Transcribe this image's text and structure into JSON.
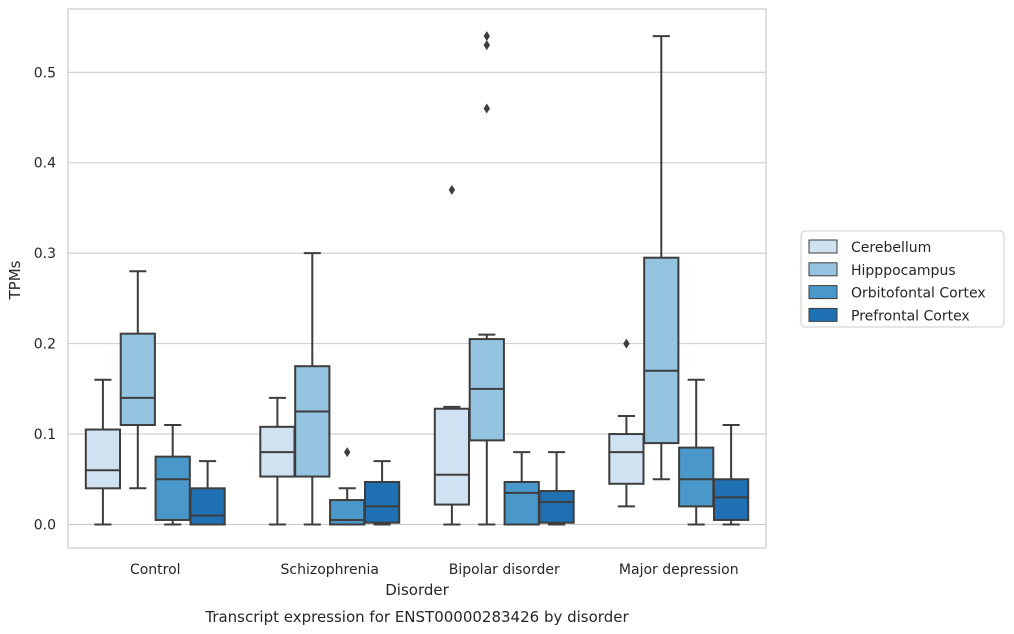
{
  "chart_data": {
    "type": "boxplot",
    "caption": "Transcript expression for ENST00000283426 by disorder",
    "xlabel": "Disorder",
    "ylabel": "TPMs",
    "ylim": [
      -0.026,
      0.57
    ],
    "yticks": [
      0.0,
      0.1,
      0.2,
      0.3,
      0.4,
      0.5
    ],
    "grid": "horizontal",
    "legend_position": "right",
    "categories": [
      "Control",
      "Schizophrenia",
      "Bipolar disorder",
      "Major depression"
    ],
    "series": [
      {
        "name": "Cerebellum",
        "color": "#d0e1f2",
        "boxes": [
          {
            "whislo": 0.0,
            "q1": 0.04,
            "med": 0.06,
            "q3": 0.105,
            "whishi": 0.16,
            "fliers": []
          },
          {
            "whislo": 0.0,
            "q1": 0.053,
            "med": 0.08,
            "q3": 0.108,
            "whishi": 0.14,
            "fliers": []
          },
          {
            "whislo": 0.0,
            "q1": 0.022,
            "med": 0.055,
            "q3": 0.128,
            "whishi": 0.13,
            "fliers": [
              0.37
            ]
          },
          {
            "whislo": 0.02,
            "q1": 0.045,
            "med": 0.08,
            "q3": 0.1,
            "whishi": 0.12,
            "fliers": [
              0.2
            ]
          }
        ]
      },
      {
        "name": "Hipppocampus",
        "color": "#94c4df",
        "boxes": [
          {
            "whislo": 0.04,
            "q1": 0.11,
            "med": 0.14,
            "q3": 0.211,
            "whishi": 0.28,
            "fliers": []
          },
          {
            "whislo": 0.0,
            "q1": 0.053,
            "med": 0.125,
            "q3": 0.175,
            "whishi": 0.3,
            "fliers": []
          },
          {
            "whislo": 0.0,
            "q1": 0.093,
            "med": 0.15,
            "q3": 0.205,
            "whishi": 0.21,
            "fliers": [
              0.46,
              0.53,
              0.54
            ]
          },
          {
            "whislo": 0.05,
            "q1": 0.09,
            "med": 0.17,
            "q3": 0.295,
            "whishi": 0.54,
            "fliers": []
          }
        ]
      },
      {
        "name": "Orbitofontal Cortex",
        "color": "#4a98c9",
        "boxes": [
          {
            "whislo": 0.0,
            "q1": 0.005,
            "med": 0.05,
            "q3": 0.075,
            "whishi": 0.11,
            "fliers": []
          },
          {
            "whislo": 0.0,
            "q1": 0.0,
            "med": 0.005,
            "q3": 0.027,
            "whishi": 0.04,
            "fliers": [
              0.08
            ]
          },
          {
            "whislo": 0.0,
            "q1": 0.0,
            "med": 0.035,
            "q3": 0.047,
            "whishi": 0.08,
            "fliers": []
          },
          {
            "whislo": 0.0,
            "q1": 0.02,
            "med": 0.05,
            "q3": 0.085,
            "whishi": 0.16,
            "fliers": []
          }
        ]
      },
      {
        "name": "Prefrontal Cortex",
        "color": "#2070b4",
        "boxes": [
          {
            "whislo": 0.0,
            "q1": 0.0,
            "med": 0.01,
            "q3": 0.04,
            "whishi": 0.07,
            "fliers": []
          },
          {
            "whislo": 0.0,
            "q1": 0.002,
            "med": 0.02,
            "q3": 0.047,
            "whishi": 0.07,
            "fliers": []
          },
          {
            "whislo": 0.0,
            "q1": 0.002,
            "med": 0.025,
            "q3": 0.037,
            "whishi": 0.08,
            "fliers": []
          },
          {
            "whislo": 0.0,
            "q1": 0.005,
            "med": 0.03,
            "q3": 0.05,
            "whishi": 0.11,
            "fliers": []
          }
        ]
      }
    ]
  }
}
